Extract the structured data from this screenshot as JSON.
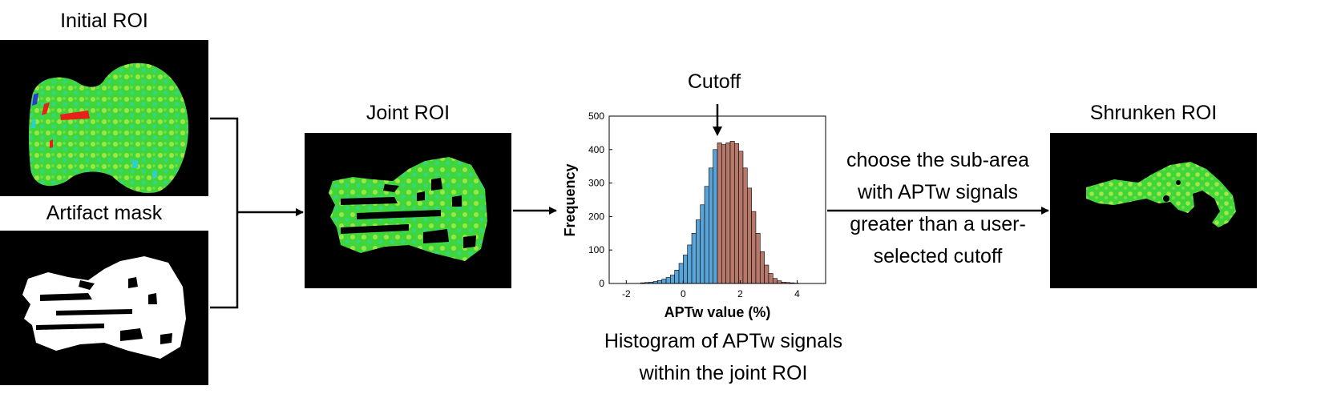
{
  "panels": {
    "initial_roi": {
      "title": "Initial ROI"
    },
    "artifact_mask": {
      "title": "Artifact mask"
    },
    "joint_roi": {
      "title": "Joint ROI"
    },
    "shrunken_roi": {
      "title": "Shrunken ROI"
    }
  },
  "cutoff_label": "Cutoff",
  "histogram_caption": [
    "Histogram of APTw signals",
    "within the joint ROI"
  ],
  "step_text": [
    "choose the sub-area",
    "with APTw signals",
    "greater than a user-",
    "selected cutoff"
  ],
  "colors": {
    "below_cutoff": "#5aa3d6",
    "above_cutoff": "#b5786a",
    "roi_green": "#3fd63a",
    "roi_yellow": "#b8e84a",
    "roi_cyan": "#2fd0c8",
    "roi_red": "#e8201a"
  },
  "chart_data": {
    "type": "bar",
    "xlabel": "APTw value (%)",
    "ylabel": "Frequency",
    "xlim": [
      -2.6,
      5
    ],
    "ylim": [
      0,
      500
    ],
    "xticks": [
      -2,
      0,
      2,
      4
    ],
    "yticks": [
      0,
      100,
      200,
      300,
      400,
      500
    ],
    "cutoff": 1.2,
    "bin_width": 0.15,
    "bin_starts": [
      -1.5,
      -1.35,
      -1.2,
      -1.05,
      -0.9,
      -0.75,
      -0.6,
      -0.45,
      -0.3,
      -0.15,
      0,
      0.15,
      0.3,
      0.45,
      0.6,
      0.75,
      0.9,
      1.05,
      1.2,
      1.35,
      1.5,
      1.65,
      1.8,
      1.95,
      2.1,
      2.25,
      2.4,
      2.55,
      2.7,
      2.85,
      3,
      3.15,
      3.3,
      3.45,
      3.6,
      3.75,
      3.9
    ],
    "values": [
      2,
      3,
      4,
      6,
      9,
      13,
      18,
      25,
      40,
      60,
      85,
      115,
      150,
      190,
      235,
      290,
      345,
      400,
      420,
      415,
      420,
      425,
      418,
      395,
      345,
      285,
      215,
      150,
      95,
      55,
      30,
      15,
      8,
      4,
      3,
      2,
      1
    ]
  }
}
